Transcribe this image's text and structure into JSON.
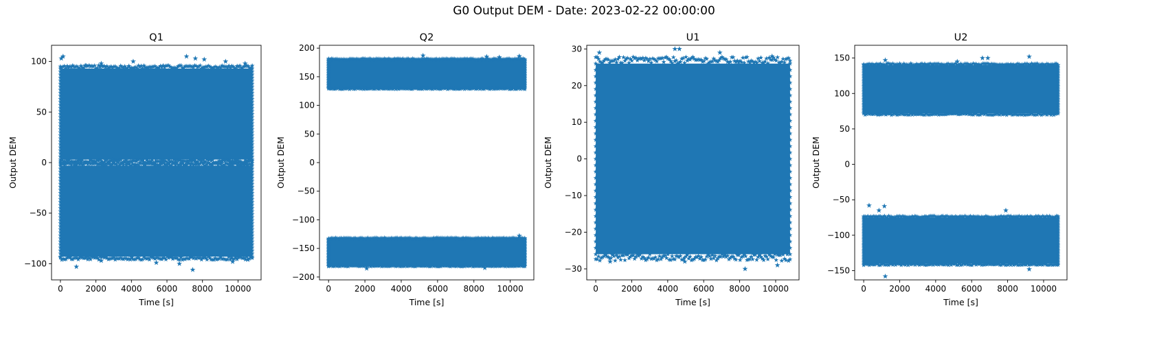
{
  "figure": {
    "title": "G0 Output DEM - Date: 2023-02-22 00:00:00"
  },
  "chart_data": [
    {
      "type": "scatter",
      "title": "Q1",
      "xlabel": "Time [s]",
      "ylabel": "Output DEM",
      "xlim": [
        -500,
        11300
      ],
      "ylim": [
        -116,
        116
      ],
      "xticks": [
        0,
        2000,
        4000,
        6000,
        8000,
        10000
      ],
      "yticks": [
        -100,
        -50,
        0,
        50,
        100
      ],
      "ytick_labels": [
        "−100",
        "−50",
        "0",
        "50",
        "100"
      ],
      "marker": "star",
      "color": "#1f77b4",
      "grid": false,
      "series": [
        {
          "x_range": [
            0,
            10800
          ],
          "bands": [
            {
              "y_range": [
                -93,
                -3
              ],
              "outliers": [
                [
                  900,
                  -103
                ],
                [
                  7450,
                  -106
                ],
                [
                  2300,
                  -97
                ],
                [
                  5400,
                  -99
                ],
                [
                  6700,
                  -100
                ],
                [
                  9700,
                  -98
                ],
                [
                  10550,
                  -96
                ]
              ]
            },
            {
              "y_range": [
                3,
                93
              ],
              "outliers": [
                [
                  50,
                  103
                ],
                [
                  150,
                  105
                ],
                [
                  4100,
                  100
                ],
                [
                  7100,
                  105
                ],
                [
                  7600,
                  103
                ],
                [
                  8100,
                  102
                ],
                [
                  9300,
                  100
                ],
                [
                  10400,
                  98
                ],
                [
                  1400,
                  96
                ],
                [
                  2300,
                  98
                ]
              ]
            }
          ]
        }
      ]
    },
    {
      "type": "scatter",
      "title": "Q2",
      "xlabel": "Time [s]",
      "ylabel": "Output DEM",
      "xlim": [
        -500,
        11300
      ],
      "ylim": [
        -205,
        205
      ],
      "xticks": [
        0,
        2000,
        4000,
        6000,
        8000,
        10000
      ],
      "yticks": [
        -200,
        -150,
        -100,
        -50,
        0,
        50,
        100,
        150,
        200
      ],
      "ytick_labels": [
        "−200",
        "−150",
        "−100",
        "−50",
        "0",
        "50",
        "100",
        "150",
        "200"
      ],
      "marker": "star",
      "color": "#1f77b4",
      "grid": false,
      "series": [
        {
          "x_range": [
            0,
            10800
          ],
          "bands": [
            {
              "y_range": [
                -180,
                -133
              ],
              "outliers": [
                [
                  2100,
                  -185
                ],
                [
                  8600,
                  -184
                ],
                [
                  10500,
                  -128
                ]
              ]
            },
            {
              "y_range": [
                130,
                180
              ],
              "outliers": [
                [
                  5200,
                  187
                ],
                [
                  8700,
                  185
                ],
                [
                  10500,
                  186
                ],
                [
                  9400,
                  184
                ]
              ]
            }
          ]
        }
      ]
    },
    {
      "type": "scatter",
      "title": "U1",
      "xlabel": "Time [s]",
      "ylabel": "Output DEM",
      "xlim": [
        -500,
        11300
      ],
      "ylim": [
        -33,
        31
      ],
      "xticks": [
        0,
        2000,
        4000,
        6000,
        8000,
        10000
      ],
      "yticks": [
        -30,
        -20,
        -10,
        0,
        10,
        20,
        30
      ],
      "ytick_labels": [
        "−30",
        "−20",
        "−10",
        "0",
        "10",
        "20",
        "30"
      ],
      "marker": "star",
      "color": "#1f77b4",
      "grid": false,
      "series": [
        {
          "x_range": [
            0,
            10800
          ],
          "bands": [
            {
              "y_range": [
                -26,
                26
              ],
              "outliers": [
                [
                  200,
                  29
                ],
                [
                  4400,
                  30
                ],
                [
                  4650,
                  30
                ],
                [
                  6900,
                  29
                ],
                [
                  8300,
                  -30
                ],
                [
                  10100,
                  -29
                ],
                [
                  9800,
                  28
                ],
                [
                  800,
                  -28
                ],
                [
                  4950,
                  -28
                ]
              ]
            }
          ]
        }
      ]
    },
    {
      "type": "scatter",
      "title": "U2",
      "xlabel": "Time [s]",
      "ylabel": "Output DEM",
      "xlim": [
        -500,
        11300
      ],
      "ylim": [
        -163,
        168
      ],
      "xticks": [
        0,
        2000,
        4000,
        6000,
        8000,
        10000
      ],
      "yticks": [
        -150,
        -100,
        -50,
        0,
        50,
        100,
        150
      ],
      "ytick_labels": [
        "−150",
        "−100",
        "−50",
        "0",
        "50",
        "100",
        "150"
      ],
      "marker": "star",
      "color": "#1f77b4",
      "grid": false,
      "series": [
        {
          "x_range": [
            0,
            10800
          ],
          "bands": [
            {
              "y_range": [
                -140,
                -75
              ],
              "outliers": [
                [
                  300,
                  -58
                ],
                [
                  850,
                  -65
                ],
                [
                  1150,
                  -59
                ],
                [
                  1200,
                  -158
                ],
                [
                  7900,
                  -65
                ],
                [
                  9200,
                  -148
                ]
              ]
            },
            {
              "y_range": [
                72,
                140
              ],
              "outliers": [
                [
                  9200,
                  152
                ],
                [
                  6600,
                  150
                ],
                [
                  6900,
                  150
                ],
                [
                  5200,
                  145
                ],
                [
                  1200,
                  147
                ],
                [
                  800,
                  70
                ]
              ]
            }
          ]
        }
      ]
    }
  ]
}
